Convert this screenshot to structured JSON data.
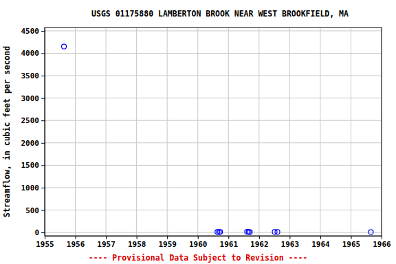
{
  "chart_data": {
    "type": "scatter",
    "title": "USGS 01175880 LAMBERTON BROOK NEAR WEST BROOKFIELD, MA",
    "y_label": "Streamflow, in cubic feet per second",
    "annotations": [
      "---- Provisional Data Subject to Revision ----"
    ],
    "x": [
      1955.63,
      1960.64,
      1960.69,
      1960.73,
      1961.61,
      1961.66,
      1961.7,
      1962.51,
      1962.6,
      1965.65
    ],
    "values": [
      4150,
      10,
      8,
      12,
      14,
      10,
      9,
      12,
      10,
      8
    ],
    "color": "#0000ff",
    "marker": "circle",
    "xlim": [
      1955,
      1966
    ],
    "xticks": [
      1955,
      1956,
      1957,
      1958,
      1959,
      1960,
      1961,
      1962,
      1963,
      1964,
      1965,
      1966
    ],
    "ylim": [
      -75,
      4575
    ],
    "yticks": [
      0,
      500,
      1000,
      1500,
      2000,
      2500,
      3000,
      3500,
      4000,
      4500
    ],
    "grid": true
  }
}
